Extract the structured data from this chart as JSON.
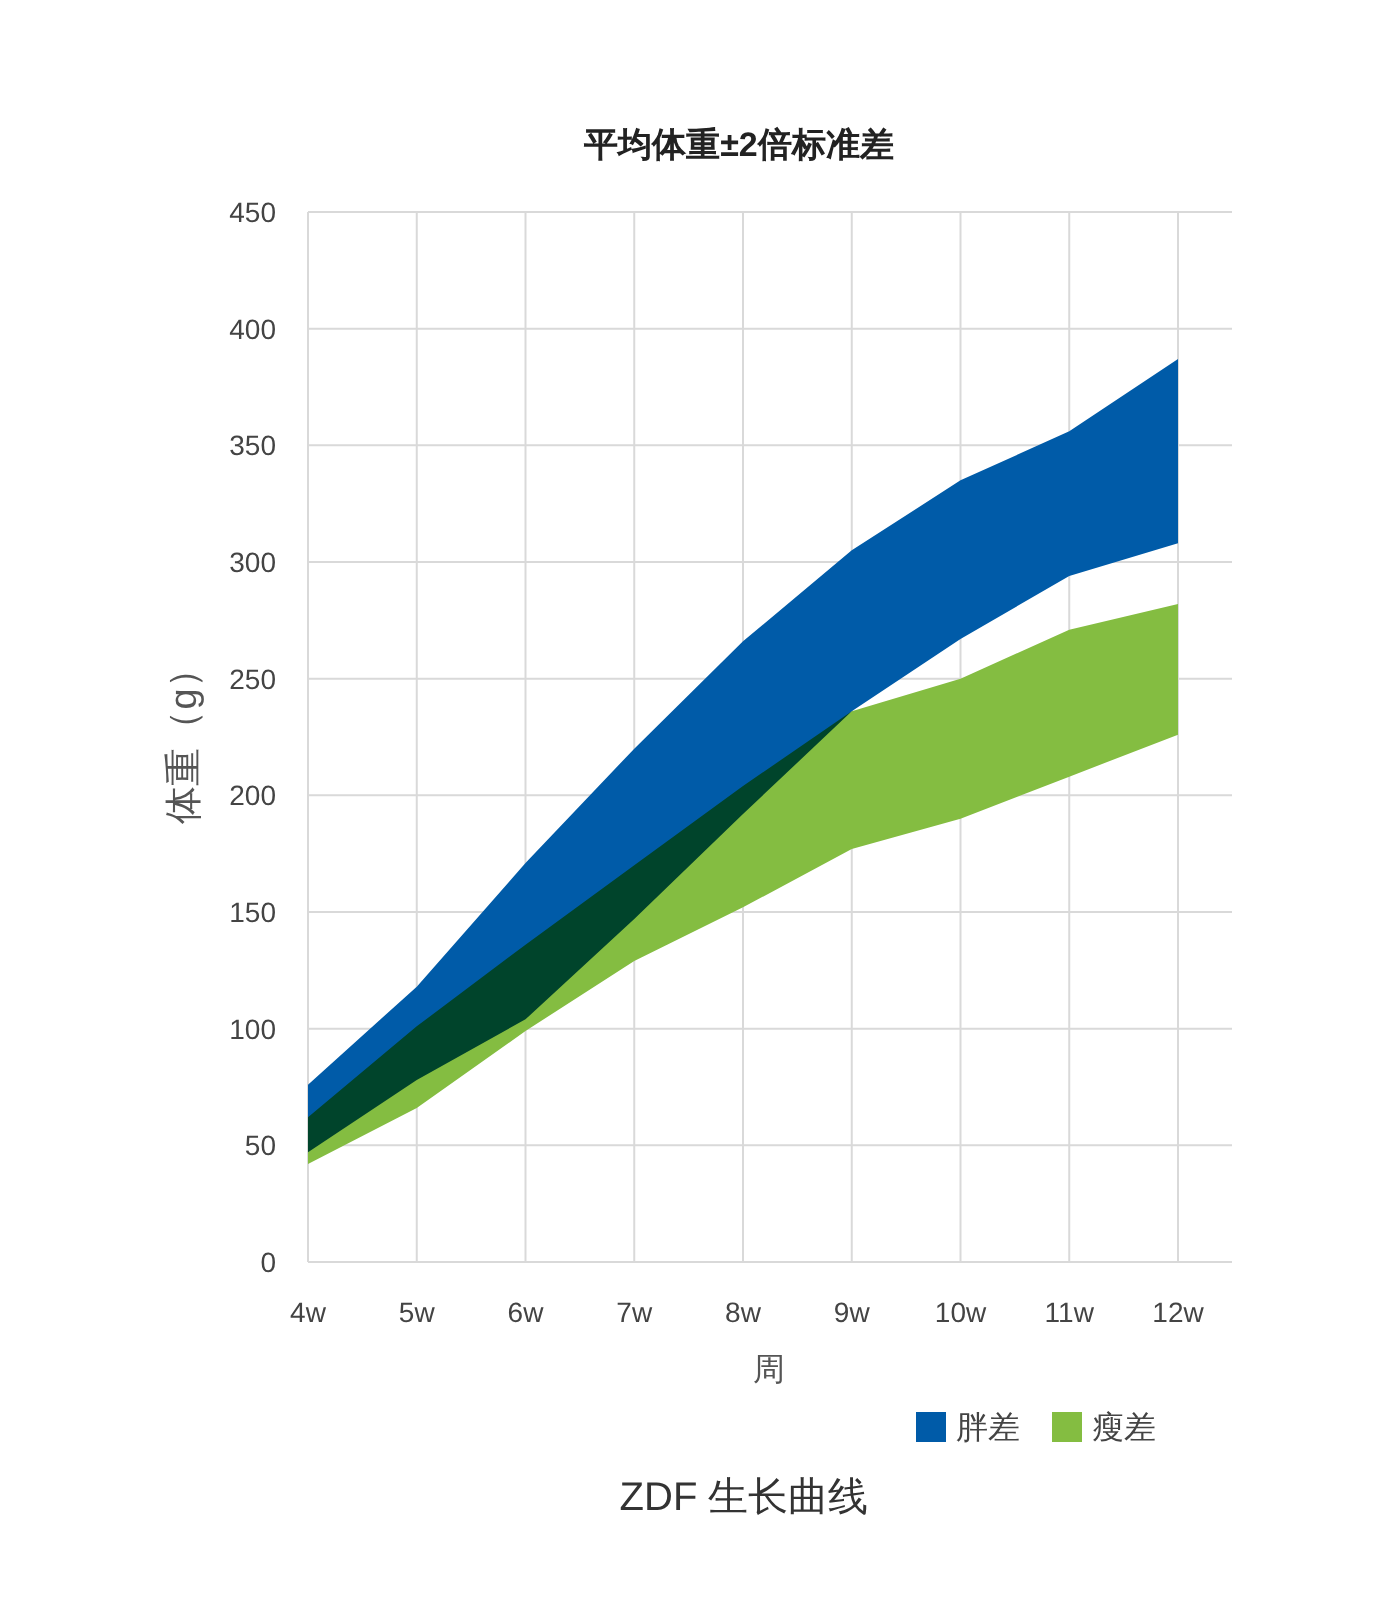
{
  "chart_data": {
    "type": "line",
    "title": "平均体重±2倍标准差",
    "xlabel": "周",
    "ylabel": "体重（g）",
    "categories": [
      "4w",
      "5w",
      "6w",
      "7w",
      "8w",
      "9w",
      "10w",
      "11w",
      "12w"
    ],
    "series": [
      {
        "name": "胖差",
        "color": "#005ba8",
        "lower": [
          47,
          78,
          104,
          147,
          192,
          236,
          267,
          294,
          308
        ],
        "upper": [
          76,
          118,
          171,
          220,
          266,
          305,
          335,
          356,
          387
        ],
        "values": [
          null,
          null,
          null,
          null,
          null,
          null,
          null,
          null,
          null
        ]
      },
      {
        "name": "瘦差",
        "color": "#84bd41",
        "lower": [
          42,
          66,
          99,
          129,
          152,
          177,
          190,
          208,
          226
        ],
        "upper": [
          62,
          101,
          136,
          170,
          204,
          236,
          250,
          271,
          282
        ],
        "values": [
          null,
          null,
          null,
          null,
          null,
          null,
          null,
          null,
          null
        ]
      }
    ],
    "ylim": [
      0,
      450
    ],
    "yticks": [
      0,
      50,
      100,
      150,
      200,
      250,
      300,
      350,
      400,
      450
    ],
    "grid": true,
    "legend": "bottom right",
    "annotations": [
      "ZDF 生长曲线"
    ]
  }
}
